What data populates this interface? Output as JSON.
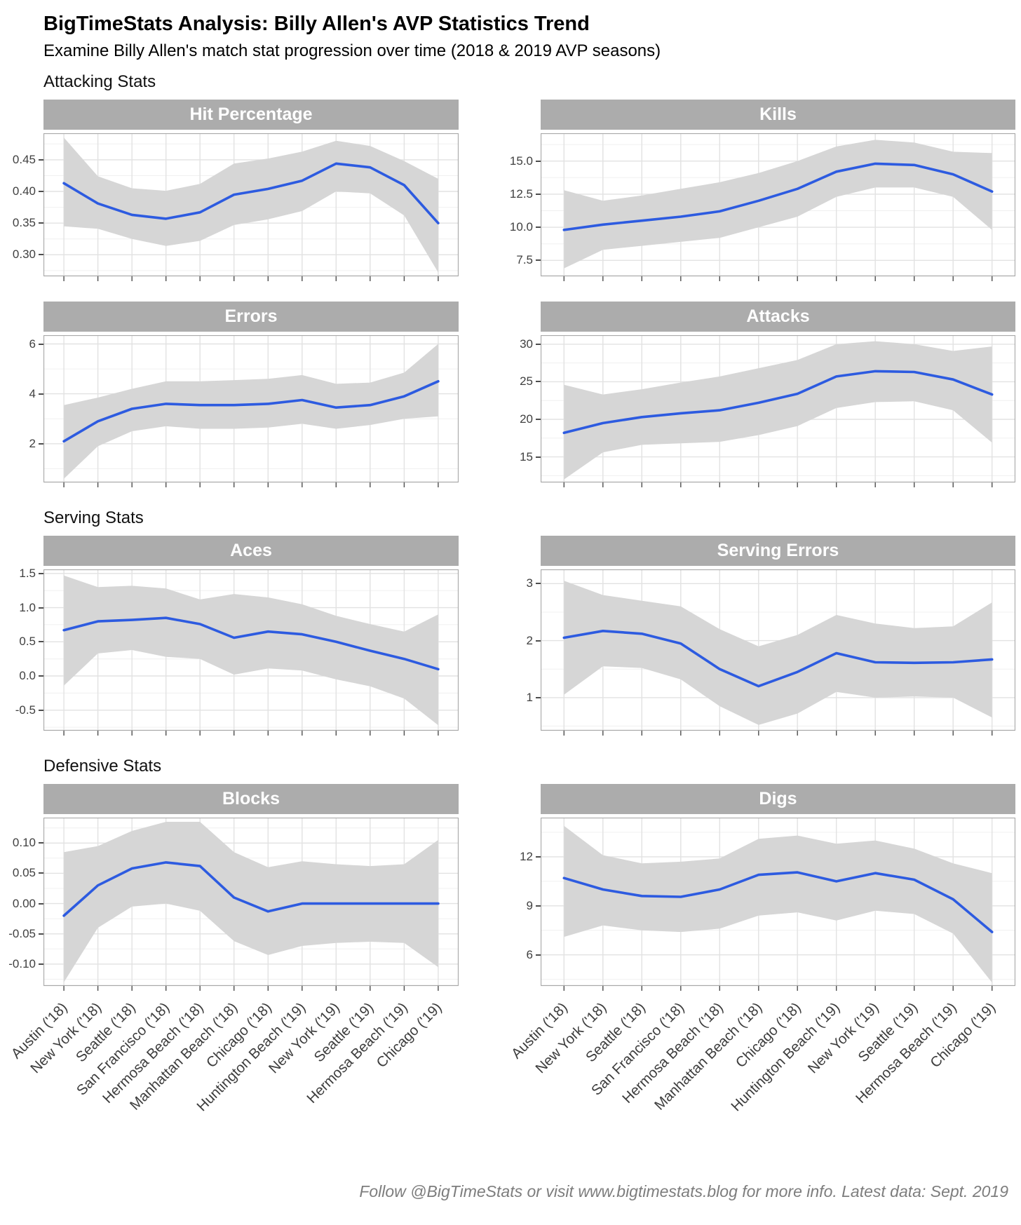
{
  "header": {
    "title": "BigTimeStats Analysis: Billy Allen's AVP Statistics Trend",
    "subtitle": "Examine Billy Allen's match stat progression over time (2018 & 2019 AVP seasons)"
  },
  "sections": [
    {
      "label": "Attacking Stats"
    },
    {
      "label": "Serving Stats"
    },
    {
      "label": "Defensive Stats"
    }
  ],
  "footer": {
    "note": "Follow @BigTimeStats or visit www.bigtimestats.blog for more info. Latest data: Sept. 2019"
  },
  "colors": {
    "line": "#2d5be0",
    "band": "#d6d6d6",
    "strip_bg": "#acacac",
    "strip_text": "#ffffff",
    "grid_major": "#e2e2e2",
    "grid_minor": "#f0f0f0",
    "panel_border": "#a8a8a8",
    "panel_bg": "#ffffff",
    "axis_text": "#3d3d3d",
    "tick_mark": "#4d4d4d"
  },
  "chart_data": {
    "type": "line",
    "legend_position": "none",
    "grid": true,
    "x_categories": [
      "Austin ('18)",
      "New York ('18)",
      "Seattle ('18)",
      "San Francisco ('18)",
      "Hermosa Beach ('18)",
      "Manhattan Beach ('18)",
      "Chicago ('18)",
      "Huntington Beach ('19)",
      "New York ('19)",
      "Seattle ('19)",
      "Hermosa Beach ('19)",
      "Chicago ('19)"
    ],
    "panels": [
      {
        "title": "Hit Percentage",
        "section": "Attacking Stats",
        "values": [
          0.413,
          0.381,
          0.363,
          0.357,
          0.367,
          0.395,
          0.404,
          0.417,
          0.444,
          0.438,
          0.41,
          0.35
        ],
        "band_upper": [
          0.485,
          0.424,
          0.405,
          0.401,
          0.412,
          0.444,
          0.452,
          0.463,
          0.48,
          0.472,
          0.448,
          0.42
        ],
        "band_lower": [
          0.345,
          0.341,
          0.325,
          0.314,
          0.322,
          0.347,
          0.356,
          0.369,
          0.4,
          0.397,
          0.362,
          0.272
        ],
        "yticks": [
          0.3,
          0.35,
          0.4,
          0.45
        ],
        "ytick_labels": [
          "0.30",
          "0.35",
          "0.40",
          "0.45"
        ],
        "ylim": [
          0.266,
          0.492
        ]
      },
      {
        "title": "Kills",
        "section": "Attacking Stats",
        "values": [
          9.8,
          10.2,
          10.5,
          10.8,
          11.2,
          12.0,
          12.9,
          14.2,
          14.8,
          14.7,
          14.0,
          12.7
        ],
        "band_upper": [
          12.8,
          12.0,
          12.4,
          12.9,
          13.4,
          14.1,
          15.0,
          16.1,
          16.6,
          16.4,
          15.7,
          15.6
        ],
        "band_lower": [
          6.9,
          8.3,
          8.6,
          8.9,
          9.2,
          10.0,
          10.8,
          12.3,
          13.0,
          13.0,
          12.3,
          9.8
        ],
        "yticks": [
          7.5,
          10.0,
          12.5,
          15.0
        ],
        "ytick_labels": [
          "7.5",
          "10.0",
          "12.5",
          "15.0"
        ],
        "ylim": [
          6.3,
          17.1
        ]
      },
      {
        "title": "Errors",
        "section": "Attacking Stats",
        "values": [
          2.1,
          2.9,
          3.4,
          3.6,
          3.55,
          3.55,
          3.6,
          3.75,
          3.45,
          3.55,
          3.9,
          4.5
        ],
        "band_upper": [
          3.55,
          3.85,
          4.2,
          4.5,
          4.5,
          4.55,
          4.6,
          4.75,
          4.4,
          4.45,
          4.85,
          6.0
        ],
        "band_lower": [
          0.6,
          1.9,
          2.5,
          2.7,
          2.6,
          2.6,
          2.65,
          2.8,
          2.6,
          2.75,
          3.0,
          3.1
        ],
        "yticks": [
          2,
          4,
          6
        ],
        "ytick_labels": [
          "2",
          "4",
          "6"
        ],
        "ylim": [
          0.45,
          6.35
        ]
      },
      {
        "title": "Attacks",
        "section": "Attacking Stats",
        "values": [
          18.2,
          19.5,
          20.3,
          20.8,
          21.2,
          22.2,
          23.4,
          25.7,
          26.4,
          26.3,
          25.3,
          23.3
        ],
        "band_upper": [
          24.6,
          23.3,
          24.0,
          24.9,
          25.7,
          26.8,
          27.9,
          30.0,
          30.4,
          30.0,
          29.1,
          29.7
        ],
        "band_lower": [
          12.0,
          15.6,
          16.6,
          16.8,
          17.0,
          17.9,
          19.1,
          21.5,
          22.3,
          22.4,
          21.2,
          16.9
        ],
        "yticks": [
          15,
          20,
          25,
          30
        ],
        "ytick_labels": [
          "15",
          "20",
          "25",
          "30"
        ],
        "ylim": [
          11.6,
          31.2
        ]
      },
      {
        "title": "Aces",
        "section": "Serving Stats",
        "values": [
          0.67,
          0.8,
          0.82,
          0.85,
          0.76,
          0.56,
          0.65,
          0.61,
          0.5,
          0.37,
          0.25,
          0.1
        ],
        "band_upper": [
          1.47,
          1.3,
          1.32,
          1.28,
          1.12,
          1.2,
          1.15,
          1.05,
          0.88,
          0.76,
          0.65,
          0.9
        ],
        "band_lower": [
          -0.14,
          0.33,
          0.38,
          0.28,
          0.25,
          0.02,
          0.11,
          0.08,
          -0.05,
          -0.15,
          -0.33,
          -0.72
        ],
        "yticks": [
          -0.5,
          0.0,
          0.5,
          1.0,
          1.5
        ],
        "ytick_labels": [
          "-0.5",
          "0.0",
          "0.5",
          "1.0",
          "1.5"
        ],
        "ylim": [
          -0.8,
          1.56
        ]
      },
      {
        "title": "Serving Errors",
        "section": "Serving Stats",
        "values": [
          2.05,
          2.17,
          2.12,
          1.95,
          1.5,
          1.2,
          1.45,
          1.78,
          1.62,
          1.61,
          1.62,
          1.67
        ],
        "band_upper": [
          3.05,
          2.8,
          2.7,
          2.6,
          2.2,
          1.9,
          2.1,
          2.45,
          2.3,
          2.22,
          2.25,
          2.67
        ],
        "band_lower": [
          1.05,
          1.55,
          1.52,
          1.32,
          0.85,
          0.52,
          0.72,
          1.1,
          1.0,
          1.02,
          1.0,
          0.65
        ],
        "yticks": [
          1,
          2,
          3
        ],
        "ytick_labels": [
          "1",
          "2",
          "3"
        ],
        "ylim": [
          0.42,
          3.25
        ]
      },
      {
        "title": "Blocks",
        "section": "Defensive Stats",
        "values": [
          -0.02,
          0.03,
          0.058,
          0.068,
          0.062,
          0.01,
          -0.013,
          0.0,
          0.0,
          0.0,
          0.0,
          0.0
        ],
        "band_upper": [
          0.085,
          0.095,
          0.12,
          0.135,
          0.135,
          0.085,
          0.06,
          0.07,
          0.065,
          0.062,
          0.065,
          0.105
        ],
        "band_lower": [
          -0.13,
          -0.04,
          -0.005,
          0.0,
          -0.012,
          -0.062,
          -0.085,
          -0.07,
          -0.065,
          -0.063,
          -0.065,
          -0.105
        ],
        "yticks": [
          -0.1,
          -0.05,
          0.0,
          0.05,
          0.1
        ],
        "ytick_labels": [
          "-0.10",
          "-0.05",
          "0.00",
          "0.05",
          "0.10"
        ],
        "ylim": [
          -0.136,
          0.142
        ]
      },
      {
        "title": "Digs",
        "section": "Defensive Stats",
        "values": [
          10.7,
          10.0,
          9.6,
          9.55,
          10.0,
          10.9,
          11.05,
          10.5,
          11.0,
          10.6,
          9.4,
          7.4
        ],
        "band_upper": [
          13.9,
          12.1,
          11.6,
          11.7,
          11.9,
          13.1,
          13.3,
          12.8,
          13.0,
          12.5,
          11.6,
          11.0
        ],
        "band_lower": [
          7.1,
          7.8,
          7.5,
          7.4,
          7.6,
          8.4,
          8.6,
          8.1,
          8.7,
          8.5,
          7.3,
          4.3
        ],
        "yticks": [
          6,
          9,
          12
        ],
        "ytick_labels": [
          "6",
          "9",
          "12"
        ],
        "ylim": [
          4.1,
          14.4
        ]
      }
    ]
  }
}
